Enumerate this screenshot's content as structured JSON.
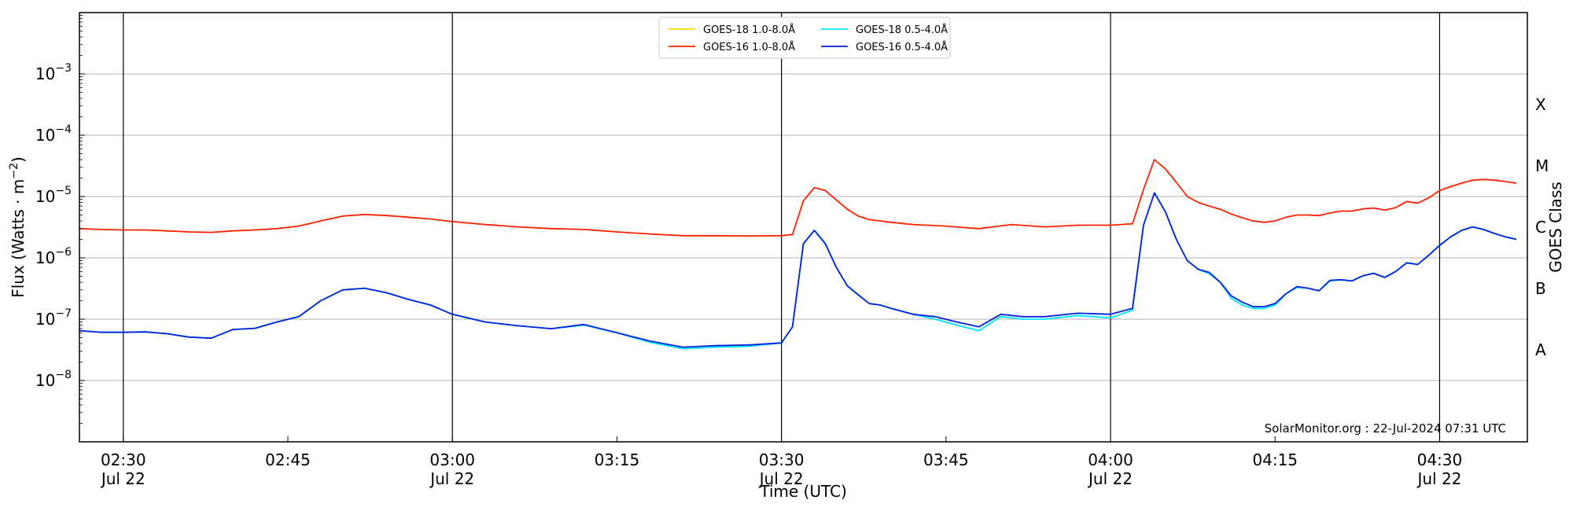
{
  "chart_data": {
    "type": "line",
    "title": "",
    "xlabel": "Time (UTC)",
    "ylabel": "Flux (Watts · m",
    "ylabel_superscript": "−2",
    "ylabel_close": ")",
    "right_label": "GOES Class",
    "y_scale": "log",
    "ylim": [
      1e-09,
      0.01
    ],
    "xlim": [
      "02:26",
      "04:38"
    ],
    "grid": "horizontal at decades",
    "x_ticks": [
      {
        "time": "02:30",
        "label": "02:30",
        "sub": "Jul 22",
        "major": true
      },
      {
        "time": "02:45",
        "label": "02:45",
        "sub": "",
        "major": false
      },
      {
        "time": "03:00",
        "label": "03:00",
        "sub": "Jul 22",
        "major": true
      },
      {
        "time": "03:15",
        "label": "03:15",
        "sub": "",
        "major": false
      },
      {
        "time": "03:30",
        "label": "03:30",
        "sub": "Jul 22",
        "major": true
      },
      {
        "time": "03:45",
        "label": "03:45",
        "sub": "",
        "major": false
      },
      {
        "time": "04:00",
        "label": "04:00",
        "sub": "Jul 22",
        "major": true
      },
      {
        "time": "04:15",
        "label": "04:15",
        "sub": "",
        "major": false
      },
      {
        "time": "04:30",
        "label": "04:30",
        "sub": "Jul 22",
        "major": true
      }
    ],
    "y_ticks": [
      {
        "value": 1e-08,
        "base": "10",
        "exp": "−8"
      },
      {
        "value": 1e-07,
        "base": "10",
        "exp": "−7"
      },
      {
        "value": 1e-06,
        "base": "10",
        "exp": "−6"
      },
      {
        "value": 1e-05,
        "base": "10",
        "exp": "−5"
      },
      {
        "value": 0.0001,
        "base": "10",
        "exp": "−4"
      },
      {
        "value": 0.001,
        "base": "10",
        "exp": "−3"
      }
    ],
    "classes": [
      {
        "label": "A",
        "value": 3.16e-08
      },
      {
        "label": "B",
        "value": 3.16e-07
      },
      {
        "label": "C",
        "value": 3.16e-06
      },
      {
        "label": "M",
        "value": 3.16e-05
      },
      {
        "label": "X",
        "value": 0.000316
      }
    ],
    "legend": {
      "placement": "top-center",
      "columns": 2,
      "order": [
        "GOES-18 1.0-8.0Å",
        "GOES-16 1.0-8.0Å",
        "GOES-18 0.5-4.0Å",
        "GOES-16 0.5-4.0Å"
      ]
    },
    "series": [
      {
        "name": "GOES-18 1.0-8.0Å",
        "color": "#ffd700",
        "x": [],
        "y": []
      },
      {
        "name": "GOES-16 1.0-8.0Å",
        "color": "#ff2200",
        "x": [
          "02:26",
          "02:28",
          "02:30",
          "02:32",
          "02:34",
          "02:36",
          "02:38",
          "02:40",
          "02:42",
          "02:44",
          "02:46",
          "02:48",
          "02:50",
          "02:52",
          "02:54",
          "02:56",
          "02:58",
          "03:00",
          "03:03",
          "03:06",
          "03:09",
          "03:12",
          "03:15",
          "03:18",
          "03:21",
          "03:24",
          "03:27",
          "03:30",
          "03:31",
          "03:32",
          "03:33",
          "03:34",
          "03:35",
          "03:36",
          "03:37",
          "03:38",
          "03:39",
          "03:40",
          "03:42",
          "03:45",
          "03:48",
          "03:51",
          "03:54",
          "03:57",
          "04:00",
          "04:02",
          "04:03",
          "04:04",
          "04:05",
          "04:06",
          "04:07",
          "04:08",
          "04:09",
          "04:10",
          "04:11",
          "04:12",
          "04:13",
          "04:14",
          "04:15",
          "04:16",
          "04:17",
          "04:18",
          "04:19",
          "04:20",
          "04:21",
          "04:22",
          "04:23",
          "04:24",
          "04:25",
          "04:26",
          "04:27",
          "04:28",
          "04:29",
          "04:30",
          "04:31",
          "04:32",
          "04:33",
          "04:34",
          "04:35",
          "04:36",
          "04:37"
        ],
        "y": [
          3e-06,
          2.9e-06,
          2.85e-06,
          2.85e-06,
          2.75e-06,
          2.65e-06,
          2.6e-06,
          2.75e-06,
          2.85e-06,
          3e-06,
          3.3e-06,
          4e-06,
          4.8e-06,
          5.1e-06,
          4.9e-06,
          4.6e-06,
          4.3e-06,
          3.9e-06,
          3.5e-06,
          3.2e-06,
          3e-06,
          2.9e-06,
          2.65e-06,
          2.45e-06,
          2.3e-06,
          2.3e-06,
          2.28e-06,
          2.3e-06,
          2.4e-06,
          8.5e-06,
          1.4e-05,
          1.25e-05,
          8.8e-06,
          6.2e-06,
          4.8e-06,
          4.2e-06,
          4e-06,
          3.8e-06,
          3.5e-06,
          3.3e-06,
          3e-06,
          3.5e-06,
          3.2e-06,
          3.4e-06,
          3.4e-06,
          3.6e-06,
          1.3e-05,
          4e-05,
          2.8e-05,
          1.7e-05,
          1e-05,
          8e-06,
          7e-06,
          6.2e-06,
          5.2e-06,
          4.5e-06,
          4e-06,
          3.8e-06,
          4e-06,
          4.6e-06,
          5e-06,
          5e-06,
          4.9e-06,
          5.4e-06,
          5.8e-06,
          5.8e-06,
          6.3e-06,
          6.5e-06,
          6e-06,
          6.6e-06,
          8.3e-06,
          7.8e-06,
          9.5e-06,
          1.25e-05,
          1.45e-05,
          1.65e-05,
          1.85e-05,
          1.9e-05,
          1.85e-05,
          1.75e-05,
          1.65e-05
        ]
      },
      {
        "name": "GOES-18 0.5-4.0Å",
        "color": "#00e5ff",
        "x": [
          "02:26",
          "02:28",
          "02:30",
          "02:32",
          "02:34",
          "02:36",
          "02:38",
          "02:40",
          "02:42",
          "02:44",
          "02:46",
          "02:48",
          "02:50",
          "02:52",
          "02:54",
          "02:56",
          "02:58",
          "03:00",
          "03:03",
          "03:06",
          "03:09",
          "03:12",
          "03:15",
          "03:18",
          "03:21",
          "03:24",
          "03:27",
          "03:30",
          "03:31",
          "03:32",
          "03:33",
          "03:34",
          "03:35",
          "03:36",
          "03:37",
          "03:38",
          "03:39",
          "03:40",
          "03:42",
          "03:44",
          "03:46",
          "03:48",
          "03:50",
          "03:52",
          "03:54",
          "03:57",
          "04:00",
          "04:02",
          "04:03",
          "04:04",
          "04:05",
          "04:06",
          "04:07",
          "04:08",
          "04:09",
          "04:10",
          "04:11",
          "04:12",
          "04:13",
          "04:14",
          "04:15",
          "04:16",
          "04:17",
          "04:18",
          "04:19",
          "04:20",
          "04:21",
          "04:22",
          "04:23",
          "04:24",
          "04:25",
          "04:26",
          "04:27",
          "04:28",
          "04:29",
          "04:30",
          "04:31",
          "04:32",
          "04:33",
          "04:34",
          "04:35",
          "04:36",
          "04:37"
        ],
        "y": [
          6.5e-08,
          6.1e-08,
          6.1e-08,
          6.2e-08,
          5.8e-08,
          5.1e-08,
          4.9e-08,
          6.8e-08,
          7.1e-08,
          9e-08,
          1.1e-07,
          2e-07,
          3e-07,
          3.2e-07,
          2.7e-07,
          2.1e-07,
          1.7e-07,
          1.2e-07,
          9e-08,
          7.8e-08,
          7e-08,
          8e-08,
          6e-08,
          4.2e-08,
          3.3e-08,
          3.5e-08,
          3.6e-08,
          4.1e-08,
          7.5e-08,
          1.7e-06,
          2.8e-06,
          1.7e-06,
          7e-07,
          3.5e-07,
          2.5e-07,
          1.8e-07,
          1.7e-07,
          1.5e-07,
          1.2e-07,
          1e-07,
          8e-08,
          6.5e-08,
          1.1e-07,
          1e-07,
          1e-07,
          1.15e-07,
          1.05e-07,
          1.4e-07,
          3.4e-06,
          1.15e-05,
          5.6e-06,
          2e-06,
          9e-07,
          6.5e-07,
          5.5e-07,
          4e-07,
          2.2e-07,
          1.7e-07,
          1.5e-07,
          1.5e-07,
          1.7e-07,
          2.6e-07,
          3.3e-07,
          3.2e-07,
          2.9e-07,
          4.2e-07,
          4.4e-07,
          4.2e-07,
          5.1e-07,
          5.6e-07,
          4.8e-07,
          6e-07,
          8.3e-07,
          7.8e-07,
          1.1e-06,
          1.6e-06,
          2.2e-06,
          2.8e-06,
          3.2e-06,
          2.9e-06,
          2.5e-06,
          2.2e-06,
          2e-06
        ]
      },
      {
        "name": "GOES-16 0.5-4.0Å",
        "color": "#0022dd",
        "x": [
          "02:26",
          "02:28",
          "02:30",
          "02:32",
          "02:34",
          "02:36",
          "02:38",
          "02:40",
          "02:42",
          "02:44",
          "02:46",
          "02:48",
          "02:50",
          "02:52",
          "02:54",
          "02:56",
          "02:58",
          "03:00",
          "03:03",
          "03:06",
          "03:09",
          "03:12",
          "03:15",
          "03:18",
          "03:21",
          "03:24",
          "03:27",
          "03:30",
          "03:31",
          "03:32",
          "03:33",
          "03:34",
          "03:35",
          "03:36",
          "03:37",
          "03:38",
          "03:39",
          "03:40",
          "03:42",
          "03:44",
          "03:46",
          "03:48",
          "03:50",
          "03:52",
          "03:54",
          "03:57",
          "04:00",
          "04:02",
          "04:03",
          "04:04",
          "04:05",
          "04:06",
          "04:07",
          "04:08",
          "04:09",
          "04:10",
          "04:11",
          "04:12",
          "04:13",
          "04:14",
          "04:15",
          "04:16",
          "04:17",
          "04:18",
          "04:19",
          "04:20",
          "04:21",
          "04:22",
          "04:23",
          "04:24",
          "04:25",
          "04:26",
          "04:27",
          "04:28",
          "04:29",
          "04:30",
          "04:31",
          "04:32",
          "04:33",
          "04:34",
          "04:35",
          "04:36",
          "04:37"
        ],
        "y": [
          6.5e-08,
          6.1e-08,
          6.1e-08,
          6.2e-08,
          5.8e-08,
          5.1e-08,
          4.9e-08,
          6.8e-08,
          7.1e-08,
          9e-08,
          1.1e-07,
          2e-07,
          3e-07,
          3.2e-07,
          2.7e-07,
          2.1e-07,
          1.7e-07,
          1.2e-07,
          9e-08,
          7.8e-08,
          7e-08,
          8.2e-08,
          6e-08,
          4.4e-08,
          3.5e-08,
          3.7e-08,
          3.8e-08,
          4.1e-08,
          7.5e-08,
          1.7e-06,
          2.8e-06,
          1.7e-06,
          7e-07,
          3.5e-07,
          2.5e-07,
          1.8e-07,
          1.7e-07,
          1.5e-07,
          1.2e-07,
          1.1e-07,
          9e-08,
          7.5e-08,
          1.2e-07,
          1.1e-07,
          1.1e-07,
          1.25e-07,
          1.2e-07,
          1.5e-07,
          3.4e-06,
          1.15e-05,
          5.6e-06,
          2e-06,
          9e-07,
          6.5e-07,
          5.8e-07,
          4e-07,
          2.4e-07,
          1.9e-07,
          1.6e-07,
          1.6e-07,
          1.8e-07,
          2.6e-07,
          3.4e-07,
          3.2e-07,
          2.9e-07,
          4.3e-07,
          4.4e-07,
          4.2e-07,
          5.1e-07,
          5.6e-07,
          4.8e-07,
          6e-07,
          8.3e-07,
          7.8e-07,
          1.1e-06,
          1.6e-06,
          2.2e-06,
          2.8e-06,
          3.2e-06,
          2.9e-06,
          2.5e-06,
          2.2e-06,
          2e-06
        ]
      }
    ],
    "watermark": "SolarMonitor.org : 22-Jul-2024 07:31 UTC"
  }
}
